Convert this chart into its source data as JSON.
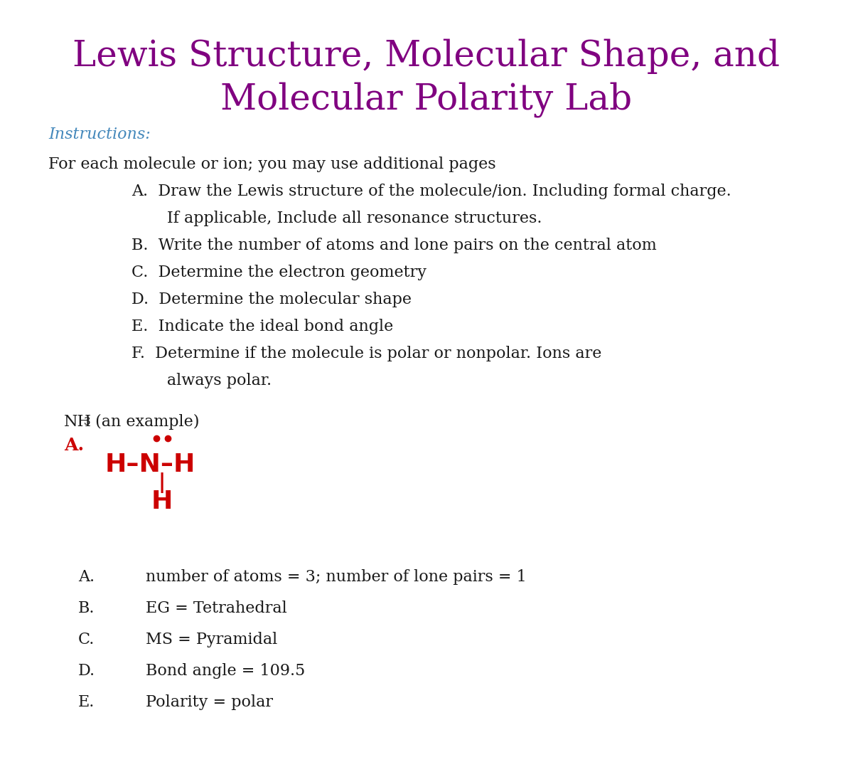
{
  "title_line1": "Lewis Structure, Molecular Shape, and",
  "title_line2": "Molecular Polarity Lab",
  "title_color": "#800080",
  "instructions_label": "Instructions:",
  "instructions_color": "#4488BB",
  "body_color": "#1a1a1a",
  "background_color": "#FFFFFF",
  "intro_line": "For each molecule or ion; you may use additional pages",
  "item_A1": "A.  Draw the Lewis structure of the molecule/ion. Including formal charge.",
  "item_A2": "       If applicable, Include all resonance structures.",
  "item_B": "B.  Write the number of atoms and lone pairs on the central atom",
  "item_C": "C.  Determine the electron geometry",
  "item_D": "D.  Determine the molecular shape",
  "item_E": "E.  Indicate the ideal bond angle",
  "item_F1": "F.  Determine if the molecule is polar or nonpolar. Ions are",
  "item_F2": "       always polar.",
  "example_label_pre": "NH",
  "example_label_sub": "3",
  "example_label_post": " (an example)",
  "lewis_label_A": "A.",
  "lewis_color": "#CC0000",
  "answer_letters": [
    "A.",
    "B.",
    "C.",
    "D.",
    "E."
  ],
  "answer_texts": [
    "number of atoms = 3; number of lone pairs = 1",
    "EG = Tetrahedral",
    "MS = Pyramidal",
    "Bond angle = 109.5",
    "Polarity = polar"
  ]
}
